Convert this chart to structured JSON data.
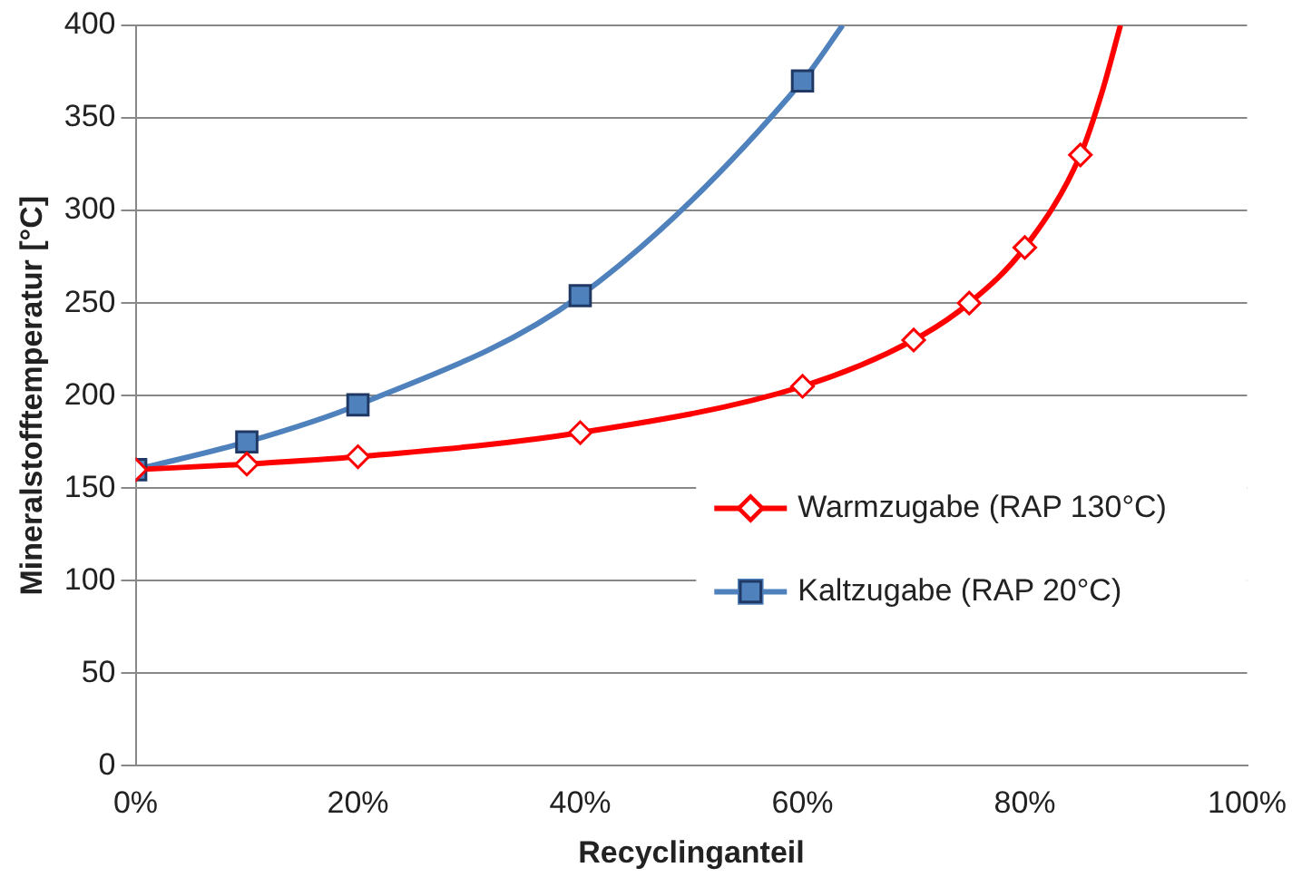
{
  "chart_data": {
    "type": "scatter",
    "xlabel": "Recyclinganteil",
    "ylabel": "Mineralstofftemperatur [°C]",
    "xlim": [
      0,
      100
    ],
    "xticks": [
      {
        "value": 0,
        "label": "0%"
      },
      {
        "value": 20,
        "label": "20%"
      },
      {
        "value": 40,
        "label": "40%"
      },
      {
        "value": 60,
        "label": "60%"
      },
      {
        "value": 80,
        "label": "80%"
      },
      {
        "value": 100,
        "label": "100%"
      }
    ],
    "ylim": [
      0,
      400
    ],
    "yticks": [
      0,
      50,
      100,
      150,
      200,
      250,
      300,
      350,
      400
    ],
    "grid": "y",
    "legend": "bottom right",
    "series": [
      {
        "type": "line",
        "marker": "none",
        "color": "#ff0000",
        "x": [
          0,
          10,
          20,
          40,
          60,
          70,
          75,
          80,
          85,
          87,
          88.6
        ],
        "values": [
          160,
          163,
          167,
          180,
          205,
          230,
          250,
          280,
          330,
          365,
          400
        ]
      },
      {
        "type": "line",
        "marker": "none",
        "color": "#4f81bd",
        "x": [
          0,
          10,
          20,
          40,
          60,
          63.6
        ],
        "values": [
          160,
          175,
          195,
          254,
          370,
          400
        ]
      },
      {
        "type": "scatter",
        "name": "Warmzugabe (RAP 130°C)",
        "marker": "diamond",
        "color": "#ff0000",
        "x": [
          0,
          10,
          20,
          40,
          60,
          70,
          75,
          80,
          85
        ],
        "values": [
          160,
          163,
          167,
          180,
          205,
          230,
          250,
          280,
          330
        ]
      },
      {
        "type": "scatter",
        "name": "Kaltzugabe (RAP 20°C)",
        "marker": "square",
        "color": "#4f81bd",
        "x": [
          0,
          10,
          20,
          40,
          60
        ],
        "values": [
          160,
          175,
          195,
          254,
          370
        ]
      }
    ]
  }
}
